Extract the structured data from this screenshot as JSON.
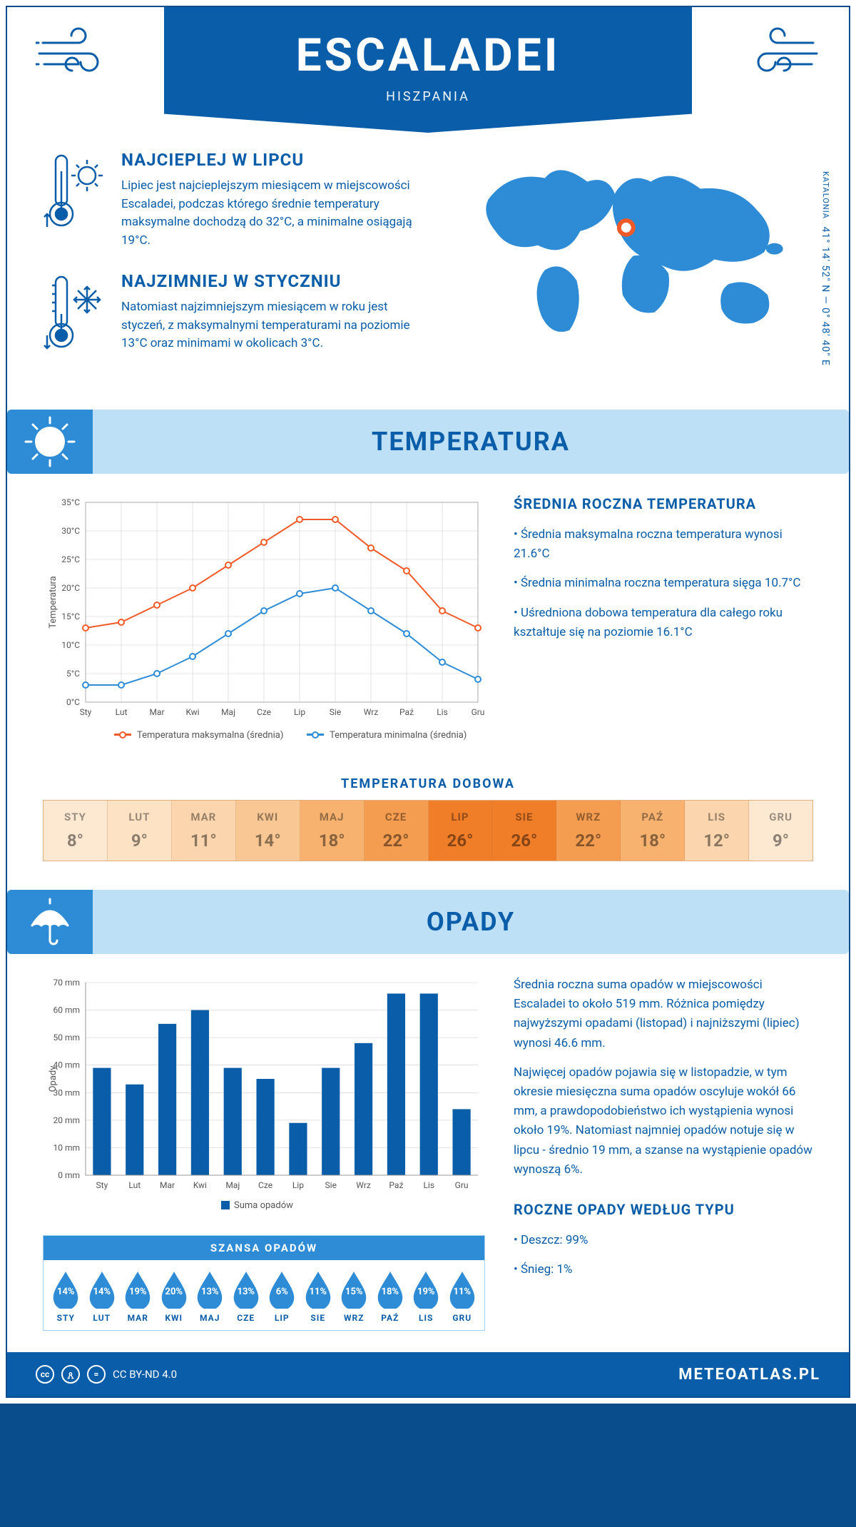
{
  "header": {
    "title": "ESCALADEI",
    "subtitle": "HISZPANIA"
  },
  "intro": {
    "warm": {
      "title": "NAJCIEPLEJ W LIPCU",
      "text": "Lipiec jest najcieplejszym miesiącem w miejscowości Escaladei, podczas którego średnie temperatury maksymalne dochodzą do 32°C, a minimalne osiągają 19°C."
    },
    "cold": {
      "title": "NAJZIMNIEJ W STYCZNIU",
      "text": "Natomiast najzimniejszym miesiącem w roku jest styczeń, z maksymalnymi temperaturami na poziomie 13°C oraz minimami w okolicach 3°C."
    },
    "region": "KATALONIA",
    "coords": "41° 14' 52\" N — 0° 48' 40\" E"
  },
  "temperature": {
    "section_title": "TEMPERATURA",
    "stats_title": "ŚREDNIA ROCZNA TEMPERATURA",
    "bullets": [
      "Średnia maksymalna roczna temperatura wynosi 21.6°C",
      "Średnia minimalna roczna temperatura sięga 10.7°C",
      "Uśredniona dobowa temperatura dla całego roku kształtuje się na poziomie 16.1°C"
    ],
    "chart": {
      "type": "line",
      "months": [
        "Sty",
        "Lut",
        "Mar",
        "Kwi",
        "Maj",
        "Cze",
        "Lip",
        "Sie",
        "Wrz",
        "Paź",
        "Lis",
        "Gru"
      ],
      "max_series": [
        13,
        14,
        17,
        20,
        24,
        28,
        32,
        32,
        27,
        23,
        16,
        13
      ],
      "min_series": [
        3,
        3,
        5,
        8,
        12,
        16,
        19,
        20,
        16,
        12,
        7,
        4
      ],
      "max_color": "#f05a28",
      "min_color": "#2e8cd6",
      "grid_color": "#d0d0d0",
      "ylabel": "Temperatura",
      "ylim": [
        0,
        35
      ],
      "ytick_step": 5,
      "legend_max": "Temperatura maksymalna (średnia)",
      "legend_min": "Temperatura minimalna (średnia)",
      "marker": "circle",
      "line_width": 2
    },
    "daily_title": "TEMPERATURA DOBOWA",
    "daily": {
      "months": [
        "STY",
        "LUT",
        "MAR",
        "KWI",
        "MAJ",
        "CZE",
        "LIP",
        "SIE",
        "WRZ",
        "PAŹ",
        "LIS",
        "GRU"
      ],
      "values": [
        "8°",
        "9°",
        "11°",
        "14°",
        "18°",
        "22°",
        "26°",
        "26°",
        "22°",
        "18°",
        "12°",
        "9°"
      ],
      "colors": [
        "#fde9d2",
        "#fde2c3",
        "#fbd5ad",
        "#f9c793",
        "#f7b270",
        "#f49c4f",
        "#f07d28",
        "#f07d28",
        "#f49c4f",
        "#f7b270",
        "#fbd5ad",
        "#fde9d2"
      ]
    }
  },
  "precip": {
    "section_title": "OPADY",
    "para1": "Średnia roczna suma opadów w miejscowości Escaladei to około 519 mm. Różnica pomiędzy najwyższymi opadami (listopad) i najniższymi (lipiec) wynosi 46.6 mm.",
    "para2": "Najwięcej opadów pojawia się w listopadzie, w tym okresie miesięczna suma opadów oscyluje wokół 66 mm, a prawdopodobieństwo ich wystąpienia wynosi około 19%. Natomiast najmniej opadów notuje się w lipcu - średnio 19 mm, a szanse na wystąpienie opadów wynoszą 6%.",
    "chart": {
      "type": "bar",
      "months": [
        "Sty",
        "Lut",
        "Mar",
        "Kwi",
        "Maj",
        "Cze",
        "Lip",
        "Sie",
        "Wrz",
        "Paź",
        "Lis",
        "Gru"
      ],
      "values": [
        39,
        33,
        55,
        60,
        39,
        35,
        19,
        39,
        48,
        66,
        66,
        24
      ],
      "bar_color": "#0a5da8",
      "grid_color": "#d0d0d0",
      "ylabel": "Opady",
      "ylim": [
        0,
        70
      ],
      "ytick_step": 10,
      "legend": "Suma opadów",
      "bar_width": 0.55
    },
    "chance": {
      "title": "SZANSA OPADÓW",
      "months": [
        "STY",
        "LUT",
        "MAR",
        "KWI",
        "MAJ",
        "CZE",
        "LIP",
        "SIE",
        "WRZ",
        "PAŹ",
        "LIS",
        "GRU"
      ],
      "values": [
        "14%",
        "14%",
        "19%",
        "20%",
        "13%",
        "13%",
        "6%",
        "11%",
        "15%",
        "18%",
        "19%",
        "11%"
      ],
      "drop_color": "#2e8cd6"
    },
    "by_type_title": "ROCZNE OPADY WEDŁUG TYPU",
    "by_type": [
      "Deszcz: 99%",
      "Śnieg: 1%"
    ]
  },
  "footer": {
    "license": "CC BY-ND 4.0",
    "site": "METEOATLAS.PL"
  }
}
